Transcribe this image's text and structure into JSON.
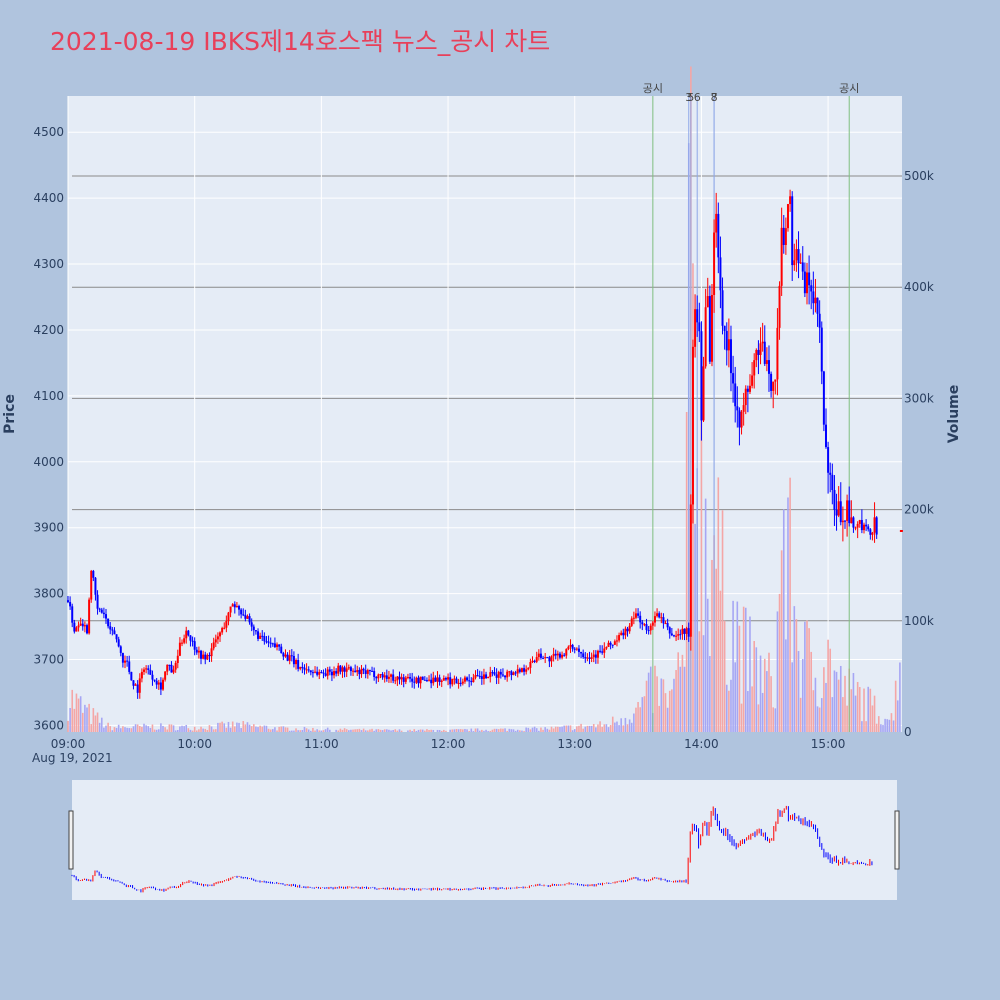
{
  "title": "2021-08-19 IBKS제14호스팩 뉴스_공시 차트",
  "colors": {
    "background": "#b0c4de",
    "plot_bg": "#e5ecf6",
    "title": "#e8405a",
    "up": "#ff0000",
    "down": "#0000ff",
    "up_volume": "#f4a6a6",
    "down_volume": "#a6a6f4",
    "news_line": "#7fbf7f",
    "event_line": "#8fa8e8"
  },
  "chart_data": {
    "type": "candlestick",
    "ylabel": "Price",
    "y2label": "Volume",
    "date_label": "Aug 19, 2021",
    "ylim": [
      3590,
      4555
    ],
    "y_ticks": [
      3600,
      3700,
      3800,
      3900,
      4000,
      4100,
      4200,
      4300,
      4400,
      4500
    ],
    "y2lim": [
      0,
      572000
    ],
    "y2_ticks": [
      {
        "value": 0,
        "label": "0"
      },
      {
        "value": 100000,
        "label": "100k"
      },
      {
        "value": 200000,
        "label": "200k"
      },
      {
        "value": 300000,
        "label": "300k"
      },
      {
        "value": 400000,
        "label": "400k"
      },
      {
        "value": 500000,
        "label": "500k"
      }
    ],
    "x_ticks": [
      "09:00",
      "10:00",
      "11:00",
      "12:00",
      "13:00",
      "14:00",
      "15:00"
    ],
    "x_range_minutes": [
      0,
      395
    ],
    "annotations": [
      {
        "label": "공시",
        "minute": 277,
        "kind": "news"
      },
      {
        "label": "3",
        "minute": 294,
        "kind": "event"
      },
      {
        "label": "5",
        "minute": 295,
        "kind": "event"
      },
      {
        "label": "6",
        "minute": 298,
        "kind": "event"
      },
      {
        "label": "7",
        "minute": 306,
        "kind": "event"
      },
      {
        "label": "8",
        "minute": 306,
        "kind": "event"
      },
      {
        "label": "공시",
        "minute": 370,
        "kind": "news"
      }
    ],
    "price_path": [
      [
        0,
        3790
      ],
      [
        3,
        3745
      ],
      [
        6,
        3760
      ],
      [
        9,
        3745
      ],
      [
        11,
        3840
      ],
      [
        14,
        3775
      ],
      [
        17,
        3770
      ],
      [
        20,
        3740
      ],
      [
        22,
        3740
      ],
      [
        26,
        3700
      ],
      [
        28,
        3695
      ],
      [
        30,
        3670
      ],
      [
        33,
        3655
      ],
      [
        36,
        3690
      ],
      [
        40,
        3675
      ],
      [
        44,
        3660
      ],
      [
        47,
        3690
      ],
      [
        50,
        3680
      ],
      [
        53,
        3720
      ],
      [
        56,
        3745
      ],
      [
        59,
        3725
      ],
      [
        62,
        3710
      ],
      [
        65,
        3700
      ],
      [
        68,
        3715
      ],
      [
        71,
        3735
      ],
      [
        73,
        3745
      ],
      [
        75,
        3760
      ],
      [
        78,
        3785
      ],
      [
        80,
        3780
      ],
      [
        83,
        3770
      ],
      [
        85,
        3760
      ],
      [
        87,
        3745
      ],
      [
        89,
        3740
      ],
      [
        92,
        3730
      ],
      [
        94,
        3725
      ],
      [
        97,
        3720
      ],
      [
        100,
        3720
      ],
      [
        103,
        3705
      ],
      [
        106,
        3700
      ],
      [
        109,
        3690
      ],
      [
        113,
        3685
      ],
      [
        118,
        3680
      ],
      [
        123,
        3680
      ],
      [
        128,
        3685
      ],
      [
        132,
        3685
      ],
      [
        136,
        3680
      ],
      [
        140,
        3680
      ],
      [
        145,
        3678
      ],
      [
        150,
        3675
      ],
      [
        155,
        3672
      ],
      [
        160,
        3670
      ],
      [
        165,
        3668
      ],
      [
        170,
        3670
      ],
      [
        175,
        3670
      ],
      [
        180,
        3668
      ],
      [
        185,
        3668
      ],
      [
        190,
        3670
      ],
      [
        195,
        3672
      ],
      [
        200,
        3675
      ],
      [
        205,
        3678
      ],
      [
        210,
        3680
      ],
      [
        215,
        3685
      ],
      [
        220,
        3695
      ],
      [
        223,
        3710
      ],
      [
        227,
        3700
      ],
      [
        232,
        3705
      ],
      [
        237,
        3715
      ],
      [
        240,
        3720
      ],
      [
        243,
        3710
      ],
      [
        247,
        3705
      ],
      [
        252,
        3710
      ],
      [
        256,
        3720
      ],
      [
        260,
        3730
      ],
      [
        263,
        3740
      ],
      [
        266,
        3750
      ],
      [
        269,
        3770
      ],
      [
        272,
        3755
      ],
      [
        275,
        3740
      ],
      [
        278,
        3770
      ],
      [
        281,
        3760
      ],
      [
        284,
        3745
      ],
      [
        287,
        3735
      ],
      [
        290,
        3740
      ],
      [
        293,
        3745
      ],
      [
        294,
        3730
      ],
      [
        295,
        3950
      ],
      [
        296,
        4160
      ],
      [
        297,
        4230
      ],
      [
        298,
        4220
      ],
      [
        299,
        4200
      ],
      [
        300,
        4080
      ],
      [
        302,
        4230
      ],
      [
        303,
        4270
      ],
      [
        304,
        4150
      ],
      [
        305,
        4250
      ],
      [
        306,
        4340
      ],
      [
        307,
        4390
      ],
      [
        308,
        4320
      ],
      [
        309,
        4250
      ],
      [
        311,
        4200
      ],
      [
        314,
        4150
      ],
      [
        317,
        4080
      ],
      [
        319,
        4060
      ],
      [
        321,
        4100
      ],
      [
        324,
        4130
      ],
      [
        327,
        4175
      ],
      [
        329,
        4170
      ],
      [
        332,
        4120
      ],
      [
        335,
        4135
      ],
      [
        337,
        4260
      ],
      [
        338,
        4340
      ],
      [
        340,
        4355
      ],
      [
        341,
        4380
      ],
      [
        342,
        4420
      ],
      [
        343,
        4300
      ],
      [
        345,
        4330
      ],
      [
        347,
        4290
      ],
      [
        349,
        4260
      ],
      [
        351,
        4280
      ],
      [
        353,
        4240
      ],
      [
        355,
        4220
      ],
      [
        356,
        4200
      ],
      [
        358,
        4050
      ],
      [
        360,
        3980
      ],
      [
        363,
        3930
      ],
      [
        366,
        3920
      ],
      [
        369,
        3925
      ],
      [
        372,
        3895
      ],
      [
        374,
        3905
      ],
      [
        377,
        3900
      ],
      [
        380,
        3890
      ],
      [
        382,
        3905
      ],
      [
        383,
        3895
      ]
    ],
    "volume_path": [
      [
        0,
        40000
      ],
      [
        10,
        20000
      ],
      [
        20,
        5000
      ],
      [
        40,
        6000
      ],
      [
        60,
        5000
      ],
      [
        80,
        8000
      ],
      [
        100,
        4000
      ],
      [
        120,
        3000
      ],
      [
        150,
        2000
      ],
      [
        180,
        2000
      ],
      [
        210,
        3000
      ],
      [
        230,
        4000
      ],
      [
        255,
        8000
      ],
      [
        270,
        25000
      ],
      [
        278,
        50000
      ],
      [
        285,
        35000
      ],
      [
        292,
        80000
      ],
      [
        295,
        560000
      ],
      [
        298,
        320000
      ],
      [
        300,
        280000
      ],
      [
        303,
        200000
      ],
      [
        306,
        220000
      ],
      [
        310,
        150000
      ],
      [
        315,
        120000
      ],
      [
        320,
        90000
      ],
      [
        325,
        70000
      ],
      [
        330,
        60000
      ],
      [
        335,
        50000
      ],
      [
        338,
        220000
      ],
      [
        340,
        190000
      ],
      [
        343,
        160000
      ],
      [
        346,
        100000
      ],
      [
        350,
        80000
      ],
      [
        355,
        60000
      ],
      [
        358,
        90000
      ],
      [
        362,
        70000
      ],
      [
        366,
        50000
      ],
      [
        370,
        45000
      ],
      [
        375,
        40000
      ],
      [
        380,
        30000
      ],
      [
        385,
        20000
      ],
      [
        390,
        15000
      ],
      [
        394,
        90000
      ]
    ]
  }
}
